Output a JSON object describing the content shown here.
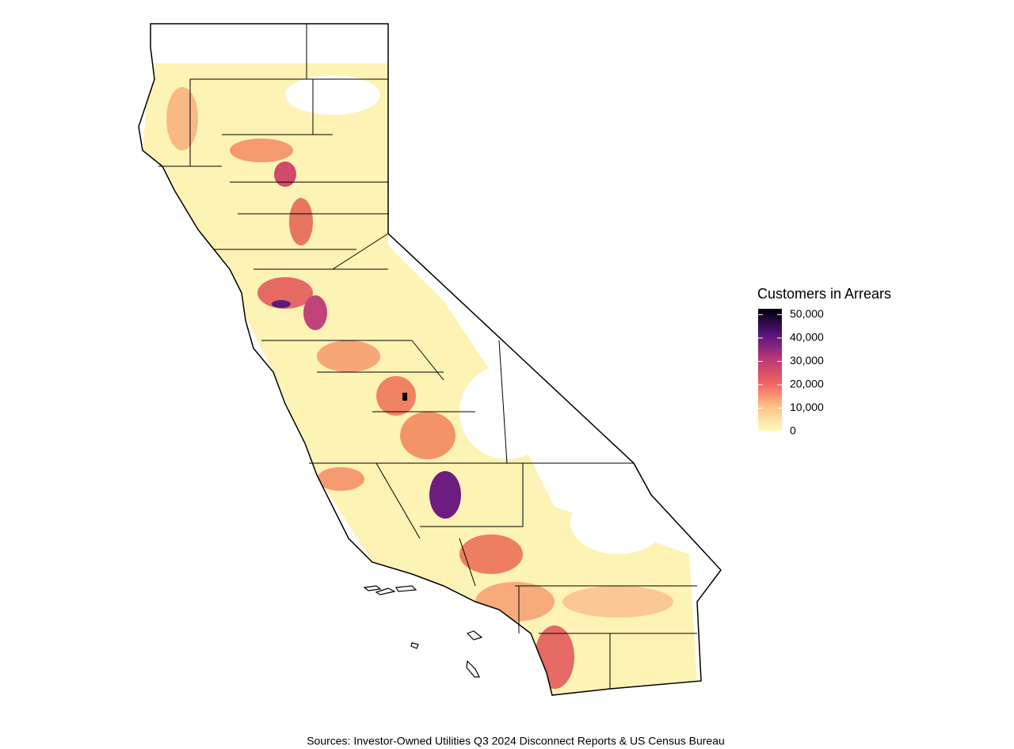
{
  "legend": {
    "title": "Customers in Arrears",
    "range": [
      0,
      52500
    ],
    "ticks": [
      0,
      {
        "value": 10000,
        "label": "10,000"
      },
      {
        "value": 20000,
        "label": "20,000"
      },
      {
        "value": 30000,
        "label": "30,000"
      },
      {
        "value": 40000,
        "label": "40,000"
      },
      {
        "value": 50000,
        "label": "50,000"
      }
    ],
    "colors": [
      "#fcfdbf",
      "#fec287",
      "#f1605d",
      "#b73779",
      "#51127c",
      "#000004"
    ]
  },
  "caption": "Sources: Investor-Owned Utilities Q3 2024 Disconnect Reports & US Census Bureau"
}
